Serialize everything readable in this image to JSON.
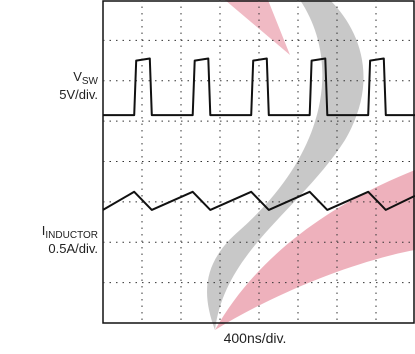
{
  "chart_data": {
    "type": "line",
    "x_label": "400ns/div.",
    "grid": "dotted 8x8 divisions",
    "watermark_colors": [
      "#9a9a9a",
      "#d9536b"
    ],
    "series": [
      {
        "name": "V",
        "name_subscript": "SW",
        "scale": "5V/div.",
        "color": "#111111",
        "shape": "square pulses",
        "x_div": [
          0.0,
          0.8,
          0.85,
          1.2,
          1.25,
          2.3,
          2.35,
          2.7,
          2.75,
          3.8,
          3.85,
          4.2,
          4.25,
          5.3,
          5.35,
          5.7,
          5.75,
          6.8,
          6.85,
          7.2,
          7.25,
          8.0
        ],
        "y_div": [
          1.15,
          1.15,
          2.5,
          2.55,
          1.15,
          1.15,
          2.5,
          2.55,
          1.15,
          1.15,
          2.5,
          2.55,
          1.15,
          1.15,
          2.5,
          2.55,
          1.15,
          1.15,
          2.5,
          2.55,
          1.15,
          1.15
        ]
      },
      {
        "name": "I",
        "name_subscript": "INDUCTOR",
        "scale": "0.5A/div.",
        "color": "#111111",
        "shape": "triangle",
        "x_div": [
          0.0,
          0.8,
          1.25,
          2.3,
          2.75,
          3.8,
          4.25,
          5.3,
          5.75,
          6.8,
          7.25,
          8.0
        ],
        "y_div": [
          -1.2,
          -0.75,
          -1.2,
          -0.75,
          -1.2,
          -0.75,
          -1.2,
          -0.75,
          -1.2,
          -0.75,
          -1.2,
          -0.85
        ]
      }
    ]
  }
}
